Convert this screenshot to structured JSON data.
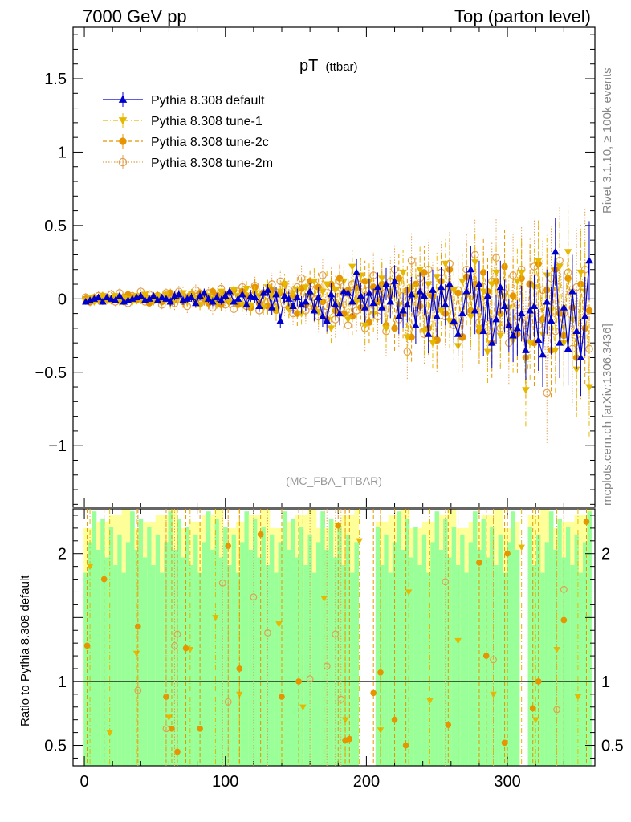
{
  "header": {
    "left": "7000 GeV pp",
    "right": "Top (parton level)"
  },
  "side_labels": {
    "rivet": "Rivet 3.1.10, ≥ 100k events",
    "mcplots": "mcplots.cern.ch [arXiv:1306.3436]"
  },
  "chart_data": {
    "type": "scatter",
    "title_main": "pT",
    "title_sub": "(ttbar)",
    "watermark": "(MC_FBA_TTBAR)",
    "xlim": [
      -8,
      362
    ],
    "ylim": [
      -1.42,
      1.85
    ],
    "ratio_ylim": [
      0.34,
      2.35
    ],
    "ratio_ylabel": "Ratio to Pythia 8.308 default",
    "x_ticks": [
      0,
      100,
      200,
      300
    ],
    "y_ticks": [
      1.5,
      1,
      0.5,
      0,
      -0.5,
      -1
    ],
    "y_tick_labels": [
      "1.5",
      "1",
      "0.5",
      "0",
      "−0.5",
      "−1"
    ],
    "ratio_ticks": [
      2,
      1,
      0.5
    ],
    "ratio_tick_labels": [
      "2",
      "1",
      "0.5"
    ],
    "series": [
      {
        "name": "Pythia 8.308 default",
        "color": "#0000cc",
        "marker": "triangle-up",
        "line": "solid"
      },
      {
        "name": "Pythia 8.308 tune-1",
        "color": "#e6b800",
        "marker": "triangle-down",
        "line": "dashdot"
      },
      {
        "name": "Pythia 8.308 tune-2c",
        "color": "#e69500",
        "marker": "circle",
        "line": "dashed"
      },
      {
        "name": "Pythia 8.308 tune-2m",
        "color": "#e0a050",
        "marker": "circle-open",
        "line": "dotted"
      }
    ],
    "x": [
      1,
      4,
      7,
      10,
      13,
      16,
      19,
      22,
      25,
      28,
      31,
      34,
      37,
      40,
      43,
      46,
      49,
      52,
      55,
      58,
      61,
      64,
      67,
      70,
      73,
      76,
      79,
      82,
      85,
      88,
      91,
      94,
      97,
      100,
      103,
      106,
      109,
      112,
      115,
      118,
      121,
      124,
      127,
      130,
      133,
      136,
      139,
      142,
      145,
      148,
      151,
      154,
      157,
      160,
      163,
      166,
      169,
      172,
      175,
      178,
      181,
      184,
      187,
      190,
      193,
      196,
      199,
      202,
      205,
      208,
      211,
      214,
      217,
      220,
      223,
      226,
      229,
      232,
      235,
      238,
      241,
      244,
      247,
      250,
      253,
      256,
      259,
      262,
      265,
      268,
      271,
      274,
      277,
      280,
      283,
      286,
      289,
      292,
      295,
      298,
      301,
      304,
      307,
      310,
      313,
      316,
      319,
      322,
      325,
      328,
      331,
      334,
      337,
      340,
      343,
      346,
      349,
      352,
      355,
      358
    ],
    "y": [
      [
        -0.02,
        -0.01,
        0,
        0.01,
        -0.02,
        0.01,
        0,
        -0.01,
        0.02,
        -0.02,
        -0.01,
        0,
        0.01,
        0.02,
        -0.01,
        0,
        0.02,
        -0.01,
        0.01,
        0,
        -0.02,
        0.02,
        0.03,
        -0.01,
        0,
        0.01,
        -0.03,
        0.02,
        0.04,
        0,
        -0.02,
        0.01,
        -0.01,
        0.02,
        0.05,
        -0.02,
        0,
        0.03,
        -0.04,
        0.02,
        0.01,
        -0.05,
        0.04,
        0.06,
        -0.06,
        0.03,
        -0.15,
        0.02,
        0,
        -0.05,
        0.01,
        -0.04,
        -0.02,
        0.05,
        -0.08,
        0.01,
        -0.12,
        -0.15,
        0.03,
        -0.04,
        -0.1,
        0.05,
        0.04,
        -0.02,
        0.18,
        0.02,
        -0.06,
        0.04,
        -0.03,
        0.08,
        -0.06,
        0.1,
        -0.02,
        0.12,
        -0.12,
        -0.08,
        -0.04,
        0.03,
        -0.18,
        0.05,
        0.02,
        -0.24,
        0.06,
        -0.12,
        0.08,
        -0.04,
        0.1,
        -0.15,
        -0.24,
        -0.1,
        0.05,
        0.2,
        -0.08,
        0.1,
        -0.22,
        0.02,
        -0.3,
        -0.14,
        0.08,
        -0.05,
        -0.18,
        -0.25,
        -0.2,
        -0.1,
        -0.35,
        -0.08,
        -0.05,
        -0.28,
        -0.38,
        -0.02,
        -0.15,
        0.32,
        -0.3,
        -0.06,
        -0.34,
        0.05,
        -0.22,
        -0.4,
        -0.12,
        0.26
      ],
      [
        -0.01,
        0.01,
        -0.02,
        0,
        0.02,
        -0.01,
        0.01,
        0.02,
        -0.02,
        0.01,
        0,
        -0.02,
        0.02,
        -0.01,
        0.03,
        0,
        -0.02,
        0.02,
        0,
        0.03,
        -0.03,
        0,
        0.01,
        0.04,
        -0.02,
        0.03,
        0.01,
        -0.04,
        0.03,
        0.02,
        0,
        -0.03,
        0.05,
        0.01,
        -0.02,
        0.06,
        0.02,
        -0.04,
        0.07,
        -0.05,
        0.04,
        0.02,
        -0.06,
        0.08,
        0.02,
        -0.08,
        0.05,
        0.1,
        -0.07,
        0.04,
        0.06,
        -0.1,
        0.08,
        0.02,
        0.12,
        -0.09,
        0.05,
        0.1,
        -0.2,
        0.06,
        -0.05,
        0.12,
        -0.14,
        0.22,
        -0.02,
        0.16,
        -0.18,
        0.12,
        -0.1,
        0.05,
        0.14,
        -0.2,
        0.05,
        0.12,
        -0.04,
        0.18,
        -0.26,
        0.08,
        0.02,
        0.2,
        -0.22,
        0.1,
        -0.3,
        0.15,
        -0.08,
        0.24,
        -0.15,
        0.06,
        -0.32,
        0.12,
        0.02,
        -0.12,
        0.25,
        -0.2,
        0.05,
        -0.36,
        0.1,
        0.18,
        -0.25,
        0.02,
        -0.06,
        -0.28,
        0.12,
        0.18,
        -0.62,
        -0.3,
        0.08,
        0.26,
        -0.24,
        0.16,
        -0.08,
        -0.35,
        0.22,
        -0.3,
        0.32,
        -0.14,
        -0.48,
        0.18,
        0.05,
        -0.6
      ],
      [
        0,
        -0.02,
        0.01,
        -0.01,
        0.02,
        0,
        -0.01,
        0.01,
        0,
        -0.02,
        0.03,
        0.01,
        -0.01,
        0,
        0.02,
        -0.03,
        0.01,
        0.02,
        -0.02,
        0,
        0.04,
        -0.01,
        0.02,
        -0.02,
        0.01,
        0.03,
        -0.02,
        0.04,
        0,
        -0.03,
        0.05,
        0.02,
        -0.04,
        0.03,
        -0.02,
        0.06,
        -0.04,
        0.05,
        0.02,
        -0.06,
        0.08,
        -0.03,
        0.04,
        -0.05,
        0.06,
        -0.08,
        0.04,
        0.1,
        -0.06,
        0.02,
        -0.1,
        0.07,
        -0.04,
        0.12,
        -0.06,
        0.08,
        -0.02,
        -0.14,
        0.1,
        -0.08,
        0.14,
        -0.1,
        0.06,
        -0.12,
        0.08,
        -0.06,
        0.12,
        -0.16,
        0.08,
        -0.02,
        0.1,
        -0.18,
        0.02,
        -0.2,
        0.14,
        -0.1,
        0.06,
        -0.26,
        0.1,
        -0.05,
        0.18,
        -0.2,
        0.02,
        -0.28,
        0.12,
        -0.1,
        0.2,
        -0.16,
        0.04,
        -0.26,
        0.15,
        -0.08,
        0.1,
        -0.22,
        0.18,
        0.05,
        -0.3,
        0.12,
        -0.1,
        0.22,
        -0.18,
        0.02,
        -0.24,
        0.14,
        -0.4,
        0.1,
        -0.3,
        0.24,
        -0.14,
        0.06,
        -0.35,
        0.2,
        -0.1,
        -0.25,
        0.14,
        -0.06,
        -0.4,
        0.1,
        -0.2,
        -0.08
      ],
      [
        0.01,
        -0.02,
        0,
        0.02,
        -0.01,
        0.01,
        0.03,
        -0.02,
        0.04,
        0.01,
        -0.03,
        0.02,
        0,
        0.05,
        -0.02,
        0.03,
        -0.01,
        0.02,
        -0.04,
        0.04,
        0.01,
        -0.03,
        0.05,
        0.02,
        -0.05,
        0.03,
        0.06,
        -0.03,
        0,
        0.04,
        -0.06,
        0.02,
        0.07,
        -0.04,
        0.03,
        -0.07,
        0.05,
        0.08,
        -0.05,
        0.02,
        0.09,
        -0.08,
        0.04,
        -0.02,
        0.1,
        -0.06,
        0.12,
        -0.04,
        0.06,
        -0.1,
        0.08,
        0.14,
        -0.08,
        0.02,
        0.1,
        -0.12,
        0.16,
        -0.05,
        0.08,
        -0.14,
        0.12,
        0.04,
        -0.18,
        0.1,
        -0.08,
        0.14,
        -0.2,
        0.06,
        0.16,
        -0.12,
        0.08,
        -0.22,
        0.12,
        0.2,
        -0.14,
        0.02,
        -0.36,
        0.26,
        -0.1,
        0.14,
        -0.24,
        0.2,
        0.04,
        -0.28,
        0.18,
        -0.12,
        0.24,
        -0.18,
        0.06,
        -0.26,
        0.2,
        -0.1,
        0.3,
        -0.16,
        0.08,
        -0.22,
        0.12,
        0.28,
        -0.2,
        0.04,
        -0.3,
        0.16,
        -0.12,
        0.2,
        -0.26,
        0.1,
        0.22,
        -0.18,
        0.06,
        -0.64,
        0.14,
        -0.22,
        0.26,
        -0.1,
        0.18,
        -0.34,
        0.08,
        -0.28,
        0.2,
        -0.34
      ]
    ],
    "err": [
      0.02,
      0.02,
      0.02,
      0.02,
      0.02,
      0.02,
      0.02,
      0.02,
      0.02,
      0.02,
      0.02,
      0.02,
      0.02,
      0.02,
      0.02,
      0.02,
      0.02,
      0.02,
      0.02,
      0.02,
      0.03,
      0.03,
      0.03,
      0.03,
      0.03,
      0.03,
      0.03,
      0.03,
      0.03,
      0.03,
      0.03,
      0.03,
      0.03,
      0.03,
      0.03,
      0.03,
      0.04,
      0.04,
      0.04,
      0.04,
      0.04,
      0.04,
      0.04,
      0.04,
      0.05,
      0.05,
      0.05,
      0.05,
      0.05,
      0.05,
      0.06,
      0.06,
      0.06,
      0.06,
      0.07,
      0.07,
      0.07,
      0.07,
      0.08,
      0.08,
      0.08,
      0.08,
      0.09,
      0.09,
      0.09,
      0.09,
      0.1,
      0.1,
      0.1,
      0.1,
      0.11,
      0.11,
      0.11,
      0.11,
      0.12,
      0.12,
      0.12,
      0.12,
      0.13,
      0.13,
      0.13,
      0.13,
      0.14,
      0.14,
      0.14,
      0.14,
      0.15,
      0.15,
      0.15,
      0.15,
      0.16,
      0.16,
      0.16,
      0.16,
      0.17,
      0.17,
      0.17,
      0.17,
      0.18,
      0.18,
      0.18,
      0.18,
      0.19,
      0.19,
      0.2,
      0.2,
      0.21,
      0.21,
      0.22,
      0.22,
      0.23,
      0.23,
      0.24,
      0.24,
      0.25,
      0.25,
      0.26,
      0.26,
      0.27,
      0.27
    ],
    "ratio_series": [
      {
        "name": "Pythia 8.308 tune-1",
        "x": [
          4,
          18,
          37,
          60,
          75,
          93,
          110,
          138,
          155,
          170,
          185,
          195,
          210,
          230,
          245,
          265,
          290,
          310,
          320,
          335,
          350
        ],
        "y": [
          1.9,
          0.6,
          1.22,
          0.72,
          1.25,
          1.5,
          0.9,
          1.45,
          0.8,
          1.65,
          0.7,
          2.1,
          0.62,
          1.7,
          0.85,
          1.32,
          0.9,
          2.05,
          0.7,
          1.25,
          0.88
        ]
      },
      {
        "name": "Pythia 8.308 tune-2c",
        "x": [
          2,
          14,
          38,
          58,
          62,
          66,
          72,
          82,
          102,
          110,
          125,
          140,
          152,
          180,
          185,
          188,
          205,
          210,
          220,
          228,
          258,
          280,
          285,
          298,
          300,
          318,
          322,
          340,
          356
        ],
        "y": [
          1.28,
          1.8,
          1.43,
          0.88,
          0.63,
          0.45,
          1.26,
          0.63,
          2.06,
          1.1,
          2.15,
          0.88,
          1.0,
          2.22,
          0.54,
          0.55,
          0.91,
          1.07,
          0.7,
          0.5,
          0.66,
          1.93,
          1.2,
          0.52,
          2.0,
          0.79,
          1.0,
          1.48,
          2.25
        ]
      },
      {
        "name": "Pythia 8.308 tune-2m",
        "x": [
          38,
          58,
          64,
          66,
          98,
          102,
          120,
          130,
          160,
          172,
          178,
          182,
          256,
          290,
          335,
          340
        ],
        "y": [
          0.93,
          0.63,
          1.28,
          1.37,
          1.77,
          0.84,
          1.66,
          1.38,
          1.02,
          1.12,
          1.37,
          0.86,
          1.78,
          1.17,
          0.78,
          1.72
        ]
      }
    ]
  }
}
